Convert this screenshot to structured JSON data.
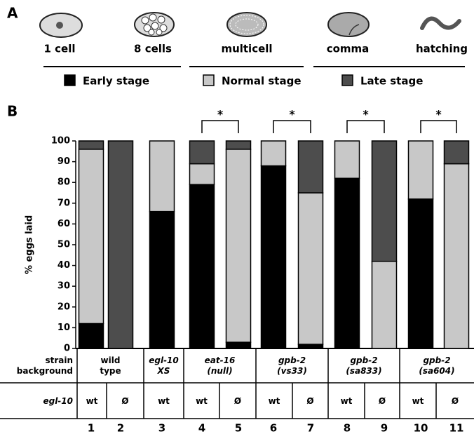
{
  "panel_a": {
    "label": "A",
    "stages": [
      "1 cell",
      "8 cells",
      "multicell",
      "comma",
      "hatching"
    ]
  },
  "chart_data": {
    "type": "bar",
    "stacked": true,
    "panel_label": "B",
    "y_label": "% eggs laid",
    "categories": [
      "1",
      "2",
      "3",
      "4",
      "5",
      "6",
      "7",
      "8",
      "9",
      "10",
      "11"
    ],
    "series": [
      {
        "name": "Early stage",
        "color": "#000000",
        "values": [
          12,
          0,
          66,
          79,
          3,
          88,
          2,
          82,
          0,
          72,
          0
        ]
      },
      {
        "name": "Normal stage",
        "color": "#c8c8c8",
        "values": [
          84,
          0,
          34,
          10,
          93,
          12,
          73,
          18,
          42,
          28,
          89
        ]
      },
      {
        "name": "Late stage",
        "color": "#4d4d4d",
        "values": [
          4,
          100,
          0,
          11,
          4,
          0,
          25,
          0,
          58,
          0,
          11
        ]
      }
    ],
    "ylim": [
      0,
      100
    ],
    "yticks": [
      0,
      10,
      20,
      30,
      40,
      50,
      60,
      70,
      80,
      90,
      100
    ],
    "annotations": [
      "*",
      "*",
      "*",
      "*"
    ]
  },
  "table": {
    "row_headers": [
      "strain background",
      "egl-10"
    ],
    "strains": [
      "wild type",
      "egl-10 XS",
      "eat-16 (null)",
      "gpb-2 (vs33)",
      "gpb-2 (sa833)",
      "gpb-2 (sa604)"
    ],
    "genotypes": [
      "wt",
      "Ø",
      "wt",
      "wt",
      "Ø",
      "wt",
      "Ø",
      "wt",
      "Ø",
      "wt",
      "Ø"
    ]
  }
}
